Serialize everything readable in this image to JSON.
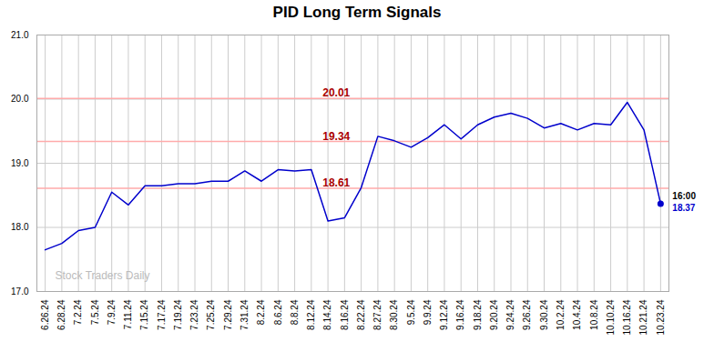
{
  "chart_data": {
    "type": "line",
    "title": "PID Long Term Signals",
    "categories": [
      "6.26.24",
      "6.28.24",
      "7.2.24",
      "7.5.24",
      "7.9.24",
      "7.11.24",
      "7.15.24",
      "7.17.24",
      "7.19.24",
      "7.23.24",
      "7.25.24",
      "7.29.24",
      "7.31.24",
      "8.2.24",
      "8.6.24",
      "8.8.24",
      "8.12.24",
      "8.14.24",
      "8.16.24",
      "8.22.24",
      "8.27.24",
      "8.30.24",
      "9.5.24",
      "9.9.24",
      "9.12.24",
      "9.16.24",
      "9.18.24",
      "9.20.24",
      "9.24.24",
      "9.26.24",
      "9.30.24",
      "10.2.24",
      "10.4.24",
      "10.8.24",
      "10.10.24",
      "10.16.24",
      "10.21.24",
      "10.23.24"
    ],
    "values": [
      17.65,
      17.75,
      17.95,
      18.0,
      18.55,
      18.35,
      18.65,
      18.65,
      18.68,
      18.68,
      18.72,
      18.72,
      18.88,
      18.72,
      18.9,
      18.88,
      18.9,
      18.1,
      18.15,
      18.62,
      19.42,
      19.35,
      19.25,
      19.4,
      19.6,
      19.38,
      19.6,
      19.72,
      19.78,
      19.7,
      19.55,
      19.62,
      19.52,
      19.62,
      19.6,
      19.95,
      19.52,
      18.37
    ],
    "color": "#0000cc",
    "ylim": [
      17,
      21
    ],
    "yticks": [
      17,
      18,
      19,
      20,
      21
    ],
    "grid": true,
    "reference_lines": [
      {
        "value": 20.01,
        "label": "20.01",
        "color": "#ffaaaa",
        "label_color": "#aa0000"
      },
      {
        "value": 19.34,
        "label": "19.34",
        "color": "#ffaaaa",
        "label_color": "#aa0000"
      },
      {
        "value": 18.61,
        "label": "18.61",
        "color": "#ffaaaa",
        "label_color": "#aa0000"
      }
    ],
    "annotations": [
      {
        "text": "Stock Traders Daily",
        "color": "#bbbbbb"
      }
    ],
    "endpoint_labels": [
      "16:00",
      "18.37"
    ]
  }
}
